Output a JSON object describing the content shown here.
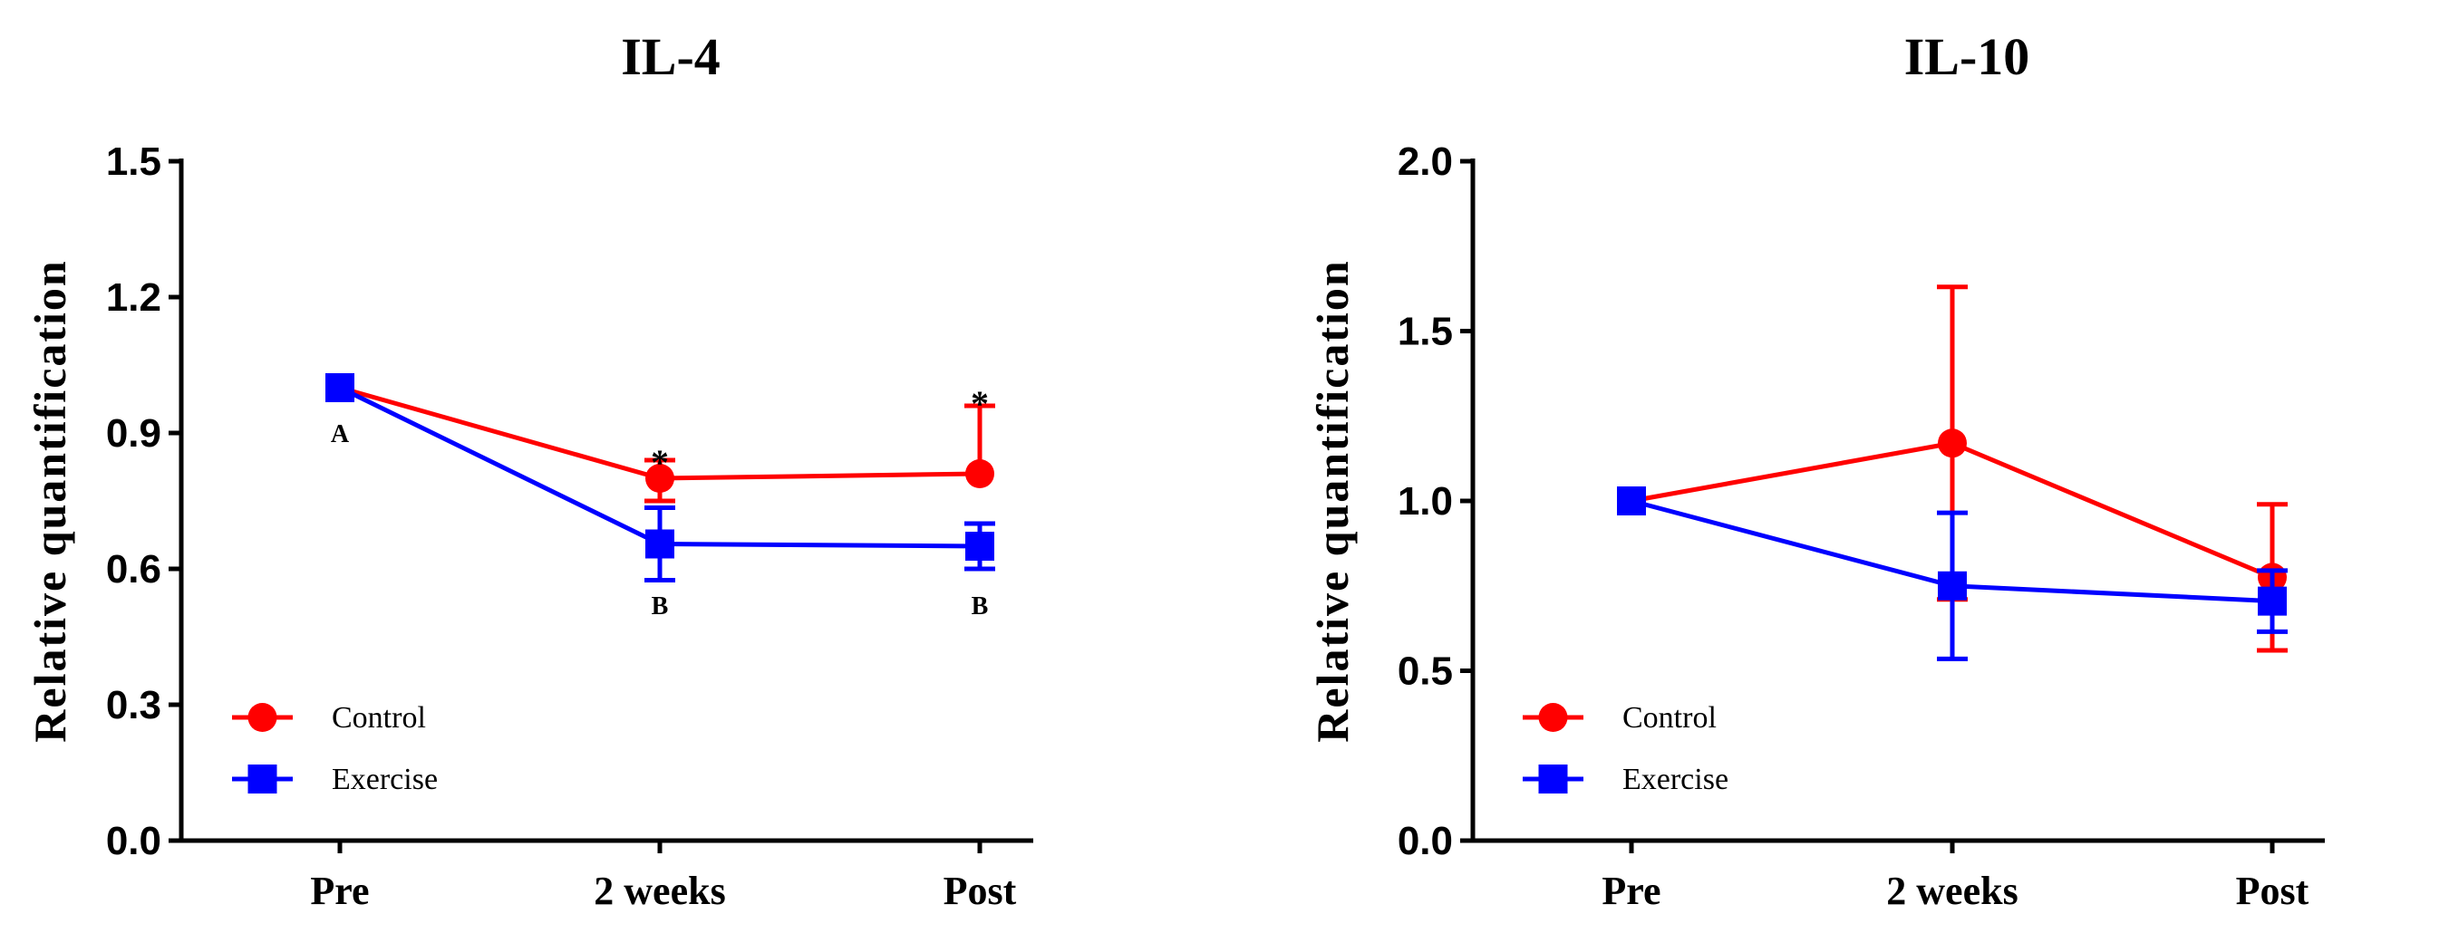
{
  "chart_data": [
    {
      "type": "line",
      "title": "IL-4",
      "xlabel": "",
      "ylabel": "Relative quantification",
      "categories": [
        "Pre",
        "2 weeks",
        "Post"
      ],
      "ylim": [
        0,
        1.5
      ],
      "yticks": [
        "0.0",
        "0.3",
        "0.6",
        "0.9",
        "1.2",
        "1.5"
      ],
      "series": [
        {
          "name": "Control",
          "color": "#ff0000",
          "marker": "circle",
          "values": [
            1.0,
            0.8,
            0.81
          ],
          "error_up": [
            0,
            0.04,
            0.15
          ],
          "error_down": [
            0,
            0.05,
            0
          ]
        },
        {
          "name": "Exercise",
          "color": "#0000ff",
          "marker": "square",
          "values": [
            1.0,
            0.655,
            0.65
          ],
          "error_up": [
            0,
            0.08,
            0.05
          ],
          "error_down": [
            0,
            0.08,
            0.05
          ]
        }
      ],
      "annotations": [
        {
          "text": "A",
          "category": "Pre",
          "kind": "letter",
          "y": 0.9
        },
        {
          "text": "B",
          "category": "2 weeks",
          "kind": "letter",
          "y": 0.52
        },
        {
          "text": "B",
          "category": "Post",
          "kind": "letter",
          "y": 0.52
        },
        {
          "text": "*",
          "category": "2 weeks",
          "kind": "star",
          "y": 0.86
        },
        {
          "text": "*",
          "category": "Post",
          "kind": "star",
          "y": 0.99
        }
      ],
      "legend": {
        "position": "bottom-left",
        "entries": [
          "Control",
          "Exercise"
        ]
      }
    },
    {
      "type": "line",
      "title": "IL-10",
      "xlabel": "",
      "ylabel": "Relative quantification",
      "categories": [
        "Pre",
        "2 weeks",
        "Post"
      ],
      "ylim": [
        0,
        2.0
      ],
      "yticks": [
        "0.0",
        "0.5",
        "1.0",
        "1.5",
        "2.0"
      ],
      "series": [
        {
          "name": "Control",
          "color": "#ff0000",
          "marker": "circle",
          "values": [
            1.0,
            1.17,
            0.775
          ],
          "error_up": [
            0,
            0.46,
            0.215
          ],
          "error_down": [
            0,
            0.46,
            0.215
          ]
        },
        {
          "name": "Exercise",
          "color": "#0000ff",
          "marker": "square",
          "values": [
            1.0,
            0.75,
            0.705
          ],
          "error_up": [
            0,
            0.215,
            0.09
          ],
          "error_down": [
            0,
            0.215,
            0.09
          ]
        }
      ],
      "annotations": [],
      "legend": {
        "position": "bottom-left",
        "entries": [
          "Control",
          "Exercise"
        ]
      }
    }
  ]
}
